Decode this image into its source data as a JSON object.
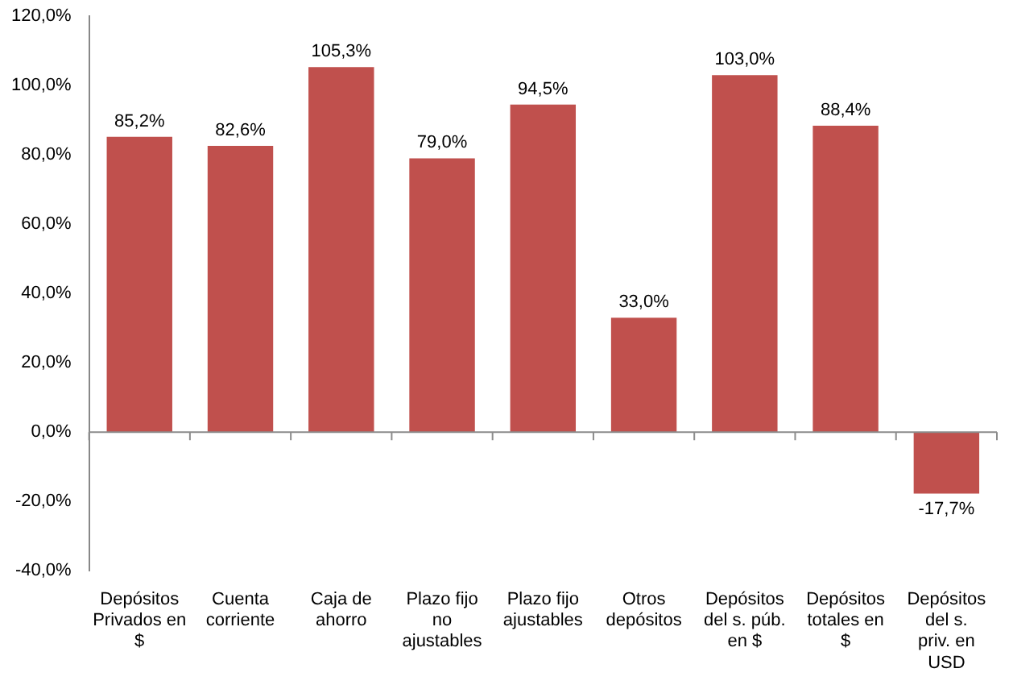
{
  "chart_data": {
    "type": "bar",
    "categories": [
      "Depósitos Privados en $",
      "Cuenta corriente",
      "Caja de ahorro",
      "Plazo fijo no ajustables",
      "Plazo fijo ajustables",
      "Otros depósitos",
      "Depósitos del s. púb. en $",
      "Depósitos totales en $",
      "Depósitos del s. priv. en USD"
    ],
    "values": [
      85.2,
      82.6,
      105.3,
      79.0,
      94.5,
      33.0,
      103.0,
      88.4,
      -17.7
    ],
    "value_labels": [
      "85,2%",
      "82,6%",
      "105,3%",
      "79,0%",
      "94,5%",
      "33,0%",
      "103,0%",
      "88,4%",
      "-17,7%"
    ],
    "color": "#c0504d",
    "ylim": [
      -40,
      120
    ],
    "yticks": [
      {
        "value": -40,
        "label": "-40,0%"
      },
      {
        "value": -20,
        "label": "-20,0%"
      },
      {
        "value": 0,
        "label": "0,0%"
      },
      {
        "value": 20,
        "label": "20,0%"
      },
      {
        "value": 40,
        "label": "40,0%"
      },
      {
        "value": 60,
        "label": "60,0%"
      },
      {
        "value": 80,
        "label": "80,0%"
      },
      {
        "value": 100,
        "label": "100,0%"
      },
      {
        "value": 120,
        "label": "120,0%"
      }
    ],
    "ref_lines": [
      {
        "axis": "y",
        "value": 0,
        "color": "#8c8c8c"
      }
    ],
    "grid": false,
    "legend": false
  }
}
